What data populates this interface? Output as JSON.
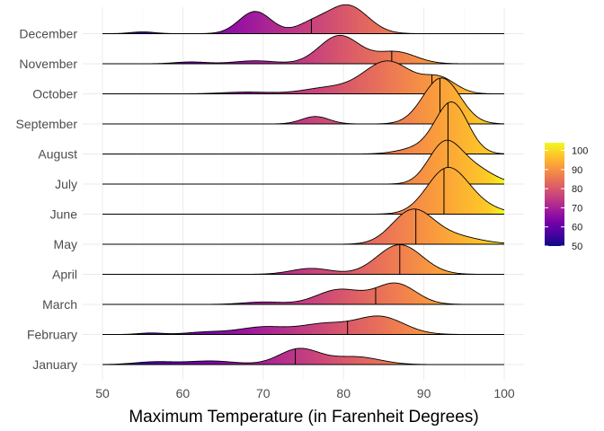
{
  "chart_data": {
    "type": "ridgeline",
    "title": "",
    "xlabel": "Maximum Temperature (in Farenheit Degrees)",
    "ylabel": "",
    "xlim": [
      47,
      102
    ],
    "x_ticks": [
      50,
      60,
      70,
      80,
      90,
      100
    ],
    "grid": true,
    "legend": {
      "position": "right",
      "type": "colorbar",
      "range": [
        50,
        104
      ],
      "ticks": [
        50,
        60,
        70,
        80,
        90,
        100
      ],
      "colors": [
        "#0d0887",
        "#46039f",
        "#7201a8",
        "#9c179e",
        "#bd3786",
        "#d8576b",
        "#ed7953",
        "#fb9f3a",
        "#fdca26",
        "#f0f921"
      ]
    },
    "series": [
      {
        "name": "January",
        "median": 74,
        "peaks": [
          [
            56.5,
            0.09,
            2.5
          ],
          [
            63.5,
            0.12,
            3.0
          ],
          [
            74.5,
            0.53,
            2.5
          ],
          [
            81.5,
            0.26,
            3.0
          ]
        ]
      },
      {
        "name": "February",
        "median": 80.5,
        "peaks": [
          [
            56,
            0.05,
            1.5
          ],
          [
            63,
            0.08,
            2.5
          ],
          [
            70,
            0.25,
            3.0
          ],
          [
            77.5,
            0.34,
            3.0
          ],
          [
            84.5,
            0.6,
            3.0
          ]
        ]
      },
      {
        "name": "March",
        "median": 84,
        "peaks": [
          [
            70,
            0.08,
            2.5
          ],
          [
            79.5,
            0.5,
            2.8
          ],
          [
            86.5,
            0.7,
            2.5
          ]
        ]
      },
      {
        "name": "April",
        "median": 87,
        "peaks": [
          [
            76,
            0.2,
            2.5
          ],
          [
            87,
            1.0,
            2.8
          ]
        ]
      },
      {
        "name": "May",
        "median": 89,
        "peaks": [
          [
            88.5,
            1.05,
            2.5
          ],
          [
            93,
            0.3,
            3.5
          ]
        ]
      },
      {
        "name": "June",
        "median": 92.5,
        "peaks": [
          [
            92.8,
            1.4,
            2.5
          ],
          [
            96,
            0.3,
            3.0
          ]
        ]
      },
      {
        "name": "July",
        "median": 93,
        "peaks": [
          [
            92.5,
            1.25,
            2.0
          ],
          [
            96,
            0.55,
            2.5
          ]
        ]
      },
      {
        "name": "August",
        "median": 93,
        "peaks": [
          [
            93.5,
            1.7,
            2.0
          ],
          [
            89.5,
            0.2,
            2.5
          ]
        ]
      },
      {
        "name": "September",
        "median": 92,
        "peaks": [
          [
            76.5,
            0.25,
            1.7
          ],
          [
            92.2,
            1.55,
            2.3
          ]
        ]
      },
      {
        "name": "October",
        "median": 91,
        "peaks": [
          [
            68,
            0.06,
            3.0
          ],
          [
            78,
            0.2,
            3.0
          ],
          [
            85.5,
            1.1,
            3.0
          ],
          [
            92,
            0.5,
            2.0
          ]
        ]
      },
      {
        "name": "November",
        "median": 86,
        "peaks": [
          [
            61,
            0.06,
            2.0
          ],
          [
            69,
            0.1,
            2.5
          ],
          [
            79.5,
            0.95,
            2.5
          ],
          [
            86.5,
            0.4,
            2.5
          ]
        ]
      },
      {
        "name": "December",
        "median": 76,
        "peaks": [
          [
            55,
            0.06,
            1.5
          ],
          [
            69,
            0.75,
            2.0
          ],
          [
            80.5,
            0.95,
            2.5
          ],
          [
            76,
            0.3,
            2.0
          ]
        ]
      }
    ]
  }
}
